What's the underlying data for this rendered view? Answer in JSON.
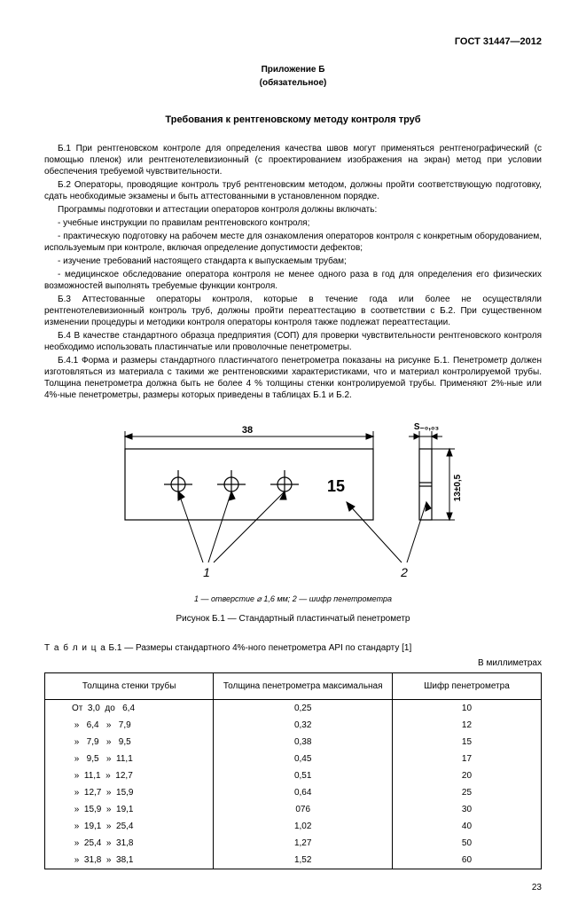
{
  "header": {
    "docnum": "ГОСТ 31447—2012"
  },
  "appendix": {
    "title": "Приложение Б",
    "sub": "(обязательное)",
    "section_title": "Требования к рентгеновскому методу контроля труб"
  },
  "paras": {
    "b1": "Б.1  При рентгеновском контроле для определения качества швов могут применяться рентгенографический (с помощью пленок) или рентгенотелевизионный (с проектированием изображения на экран) метод при условии обеспечения требуемой чувствительности.",
    "b2": "Б.2  Операторы, проводящие контроль труб рентгеновским методом, должны пройти соответствующую подготовку, сдать необходимые экзамены и быть аттестованными в установленном порядке.",
    "b2_intro": "Программы подготовки и аттестации операторов контроля должны включать:",
    "b2_i1": "- учебные инструкции по правилам рентгеновского контроля;",
    "b2_i2": "- практическую подготовку на рабочем месте для ознакомления операторов контроля с конкретным оборудованием, используемым при контроле, включая определение допустимости дефектов;",
    "b2_i3": "- изучение требований настоящего стандарта к выпускаемым трубам;",
    "b2_i4": "- медицинское обследование оператора контроля не менее одного раза в год для определения его физических возможностей выполнять требуемые функции контроля.",
    "b3": "Б.3  Аттестованные операторы контроля, которые в течение года или более не осуществляли рентгенотелевизионный контроль труб, должны пройти переаттестацию в соответствии с Б.2. При существенном изменении процедуры и методики контроля операторы контроля также подлежат переаттестации.",
    "b4": "Б.4  В качестве стандартного образца предприятия (СОП) для проверки чувствительности рентгеновского контроля необходимо использовать пластинчатые или проволочные пенетрометры.",
    "b41": "Б.4.1  Форма и размеры стандартного пластинчатого пенетрометра показаны на рисунке Б.1. Пенетрометр должен изготовляться из материала с такими же рентгеновскими характеристиками, что и материал контролируемой трубы. Толщина пенетрометра должна быть не более 4 % толщины стенки контролируемой трубы. Применяют 2%-ные или 4%-ные пенетрометры, размеры которых приведены в таблицах Б.1 и Б.2."
  },
  "figure": {
    "dim_width": "38",
    "dim_s": "S₋₀,₀₃",
    "dim_h": "13±0,5",
    "label_15": "15",
    "lead_1": "1",
    "lead_2": "2",
    "legend": "1 — отверстие ⌀ 1,6 мм; 2 — шифр пенетрометра",
    "caption": "Рисунок Б.1 — Стандартный пластинчатый пенетрометр"
  },
  "table": {
    "title_spaced": "Т а б л и ц а",
    "title_rest": "  Б.1 — Размеры стандартного 4%-ного пенетрометра API по стандарту [1]",
    "units": "В миллиметрах",
    "headers": {
      "thick": "Толщина стенки трубы",
      "max": "Толщина пенетрометра максимальная",
      "code": "Шифр пенетрометра"
    },
    "rows": [
      {
        "thick": "От  3,0  до   6,4",
        "max": "0,25",
        "code": "10"
      },
      {
        "thick": " »   6,4   »   7,9",
        "max": "0,32",
        "code": "12"
      },
      {
        "thick": " »   7,9   »   9,5",
        "max": "0,38",
        "code": "15"
      },
      {
        "thick": " »   9,5   »  11,1",
        "max": "0,45",
        "code": "17"
      },
      {
        "thick": " »  11,1  »  12,7",
        "max": "0,51",
        "code": "20"
      },
      {
        "thick": " »  12,7  »  15,9",
        "max": "0,64",
        "code": "25"
      },
      {
        "thick": " »  15,9  »  19,1",
        "max": "076",
        "code": "30"
      },
      {
        "thick": " »  19,1  »  25,4",
        "max": "1,02",
        "code": "40"
      },
      {
        "thick": " »  25,4  »  31,8",
        "max": "1,27",
        "code": "50"
      },
      {
        "thick": " »  31,8  »  38,1",
        "max": "1,52",
        "code": "60"
      }
    ]
  },
  "pagenum": "23",
  "svg": {
    "stroke": "#000000",
    "fill_none": "none",
    "fontfam": "Arial",
    "font_dim": 11,
    "font_big": 18,
    "font_lead": 14
  }
}
